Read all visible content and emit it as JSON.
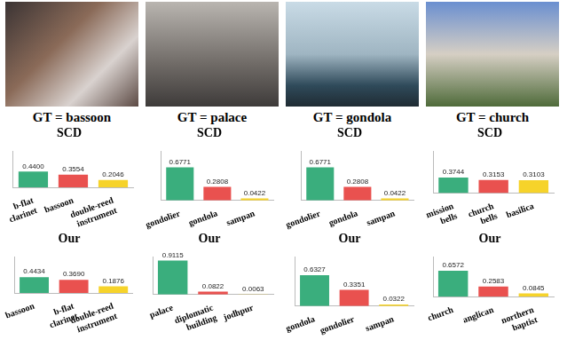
{
  "columns": [
    "GT = bassoon",
    "GT = palace",
    "GT = gondola",
    "GT = church"
  ],
  "chart_data": [
    {
      "type": "bar",
      "title": "SCD",
      "categories": [
        "b-flat clarinet",
        "bassoon",
        "double-reed instrument"
      ],
      "values": [
        0.44,
        0.3554,
        0.2046
      ],
      "value_labels": [
        "0.4400",
        "0.3554",
        "0.2046"
      ],
      "colors": [
        "#3aae7d",
        "#e9514f",
        "#f6d32a"
      ],
      "ylim": [
        0,
        1
      ],
      "grid": false,
      "data_labels": true,
      "tick_labels": "x"
    },
    {
      "type": "bar",
      "title": "Our",
      "categories": [
        "bassoon",
        "b-flat clarinet",
        "double-reed instrument"
      ],
      "values": [
        0.4434,
        0.369,
        0.1876
      ],
      "value_labels": [
        "0.4434",
        "0.3690",
        "0.1876"
      ],
      "colors": [
        "#3aae7d",
        "#e9514f",
        "#f6d32a"
      ],
      "ylim": [
        0,
        1
      ],
      "grid": false,
      "data_labels": true,
      "tick_labels": "x"
    },
    {
      "type": "bar",
      "title": "SCD",
      "categories": [
        "gondolier",
        "gondola",
        "sampan"
      ],
      "values": [
        0.6771,
        0.2808,
        0.0422
      ],
      "value_labels": [
        "0.6771",
        "0.2808",
        "0.0422"
      ],
      "colors": [
        "#3aae7d",
        "#e9514f",
        "#f6d32a"
      ],
      "ylim": [
        0,
        1
      ],
      "grid": false,
      "data_labels": true,
      "tick_labels": "x"
    },
    {
      "type": "bar",
      "title": "Our",
      "categories": [
        "palace",
        "diplomatic building",
        "jodhpur"
      ],
      "values": [
        0.9115,
        0.0822,
        0.0063
      ],
      "value_labels": [
        "0.9115",
        "0.0822",
        "0.0063"
      ],
      "colors": [
        "#3aae7d",
        "#e9514f",
        "#f6d32a"
      ],
      "ylim": [
        0,
        1
      ],
      "grid": false,
      "data_labels": true,
      "tick_labels": "x"
    },
    {
      "type": "bar",
      "title": "SCD",
      "categories": [
        "gondolier",
        "gondola",
        "sampan"
      ],
      "values": [
        0.6771,
        0.2808,
        0.0422
      ],
      "value_labels": [
        "0.6771",
        "0.2808",
        "0.0422"
      ],
      "colors": [
        "#3aae7d",
        "#e9514f",
        "#f6d32a"
      ],
      "ylim": [
        0,
        1
      ],
      "grid": false,
      "data_labels": true,
      "tick_labels": "x"
    },
    {
      "type": "bar",
      "title": "Our",
      "categories": [
        "gondola",
        "gondolier",
        "sampan"
      ],
      "values": [
        0.6327,
        0.3351,
        0.0322
      ],
      "value_labels": [
        "0.6327",
        "0.3351",
        "0.0322"
      ],
      "colors": [
        "#3aae7d",
        "#e9514f",
        "#f6d32a"
      ],
      "ylim": [
        0,
        1
      ],
      "grid": false,
      "data_labels": true,
      "tick_labels": "x"
    },
    {
      "type": "bar",
      "title": "SCD",
      "categories": [
        "mission bells",
        "church bells",
        "basilica"
      ],
      "values": [
        0.3744,
        0.3153,
        0.3103
      ],
      "value_labels": [
        "0.3744",
        "0.3153",
        "0.3103"
      ],
      "colors": [
        "#3aae7d",
        "#e9514f",
        "#f6d32a"
      ],
      "ylim": [
        0,
        1
      ],
      "grid": false,
      "data_labels": true,
      "tick_labels": "x"
    },
    {
      "type": "bar",
      "title": "Our",
      "categories": [
        "church",
        "anglican",
        "northern baptist"
      ],
      "values": [
        0.6572,
        0.2583,
        0.0845
      ],
      "value_labels": [
        "0.6572",
        "0.2583",
        "0.0845"
      ],
      "colors": [
        "#3aae7d",
        "#e9514f",
        "#f6d32a"
      ],
      "ylim": [
        0,
        1
      ],
      "grid": false,
      "data_labels": true,
      "tick_labels": "x"
    }
  ]
}
